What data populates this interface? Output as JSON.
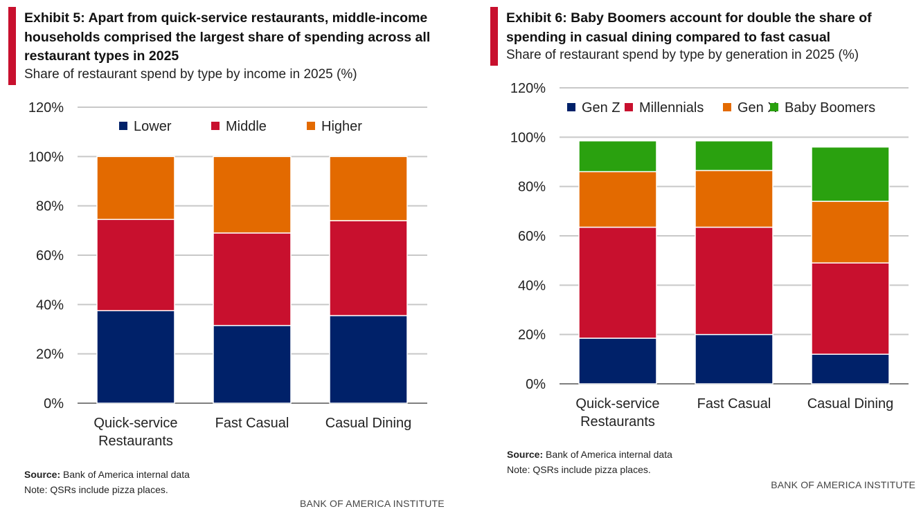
{
  "colors": {
    "accent": "#c8102e",
    "navy": "#002169",
    "red": "#c8102e",
    "orange": "#e36a00",
    "green": "#2aa10f",
    "grid": "#c8c8c8",
    "axis": "#7f7f7f"
  },
  "brand": "BANK OF AMERICA INSTITUTE",
  "exhibits": [
    {
      "title": "Exhibit 5: Apart from quick-service restaurants, middle-income households comprised the largest share of spending across all restaurant types in 2025",
      "subtitle": "Share of restaurant spend by type by income in 2025 (%)",
      "source_label": "Source:",
      "source_text": "Bank of America internal data",
      "note": "Note: QSRs include pizza places."
    },
    {
      "title": "Exhibit 6: Baby Boomers account for double the share of spending in casual dining compared to fast casual",
      "subtitle": "Share of restaurant spend by type by generation in 2025 (%)",
      "source_label": "Source:",
      "source_text": "Bank of America internal data",
      "note": "Note: QSRs include pizza places."
    }
  ],
  "chart_data": [
    {
      "type": "bar",
      "stacked": true,
      "title": "Share of restaurant spend by type by income in 2025 (%)",
      "categories": [
        [
          "Quick-service",
          "Restaurants"
        ],
        [
          "Fast Casual"
        ],
        [
          "Casual Dining"
        ]
      ],
      "series": [
        {
          "name": "Lower",
          "color": "#002169",
          "values": [
            37.5,
            31.5,
            35.5
          ]
        },
        {
          "name": "Middle",
          "color": "#c8102e",
          "values": [
            37,
            37.5,
            38.5
          ]
        },
        {
          "name": "Higher",
          "color": "#e36a00",
          "values": [
            25.5,
            31,
            26
          ]
        }
      ],
      "ylim": [
        0,
        120
      ],
      "yticks": [
        0,
        20,
        40,
        60,
        80,
        100,
        120
      ],
      "ytick_labels": [
        "0%",
        "20%",
        "40%",
        "60%",
        "80%",
        "100%",
        "120%"
      ],
      "grid": true,
      "legend_position": "top"
    },
    {
      "type": "bar",
      "stacked": true,
      "title": "Share of restaurant spend by type by generation in 2025 (%)",
      "categories": [
        [
          "Quick-service",
          "Restaurants"
        ],
        [
          "Fast Casual"
        ],
        [
          "Casual Dining"
        ]
      ],
      "series": [
        {
          "name": "Gen Z",
          "color": "#002169",
          "values": [
            18.5,
            20,
            12
          ]
        },
        {
          "name": "Millennials",
          "color": "#c8102e",
          "values": [
            45,
            43.5,
            37
          ]
        },
        {
          "name": "Gen X",
          "color": "#e36a00",
          "values": [
            22.5,
            23,
            25
          ]
        },
        {
          "name": "Baby Boomers",
          "color": "#2aa10f",
          "values": [
            12.5,
            12,
            22
          ]
        }
      ],
      "ylim": [
        0,
        120
      ],
      "yticks": [
        0,
        20,
        40,
        60,
        80,
        100,
        120
      ],
      "ytick_labels": [
        "0%",
        "20%",
        "40%",
        "60%",
        "80%",
        "100%",
        "120%"
      ],
      "grid": true,
      "legend_position": "top"
    }
  ]
}
